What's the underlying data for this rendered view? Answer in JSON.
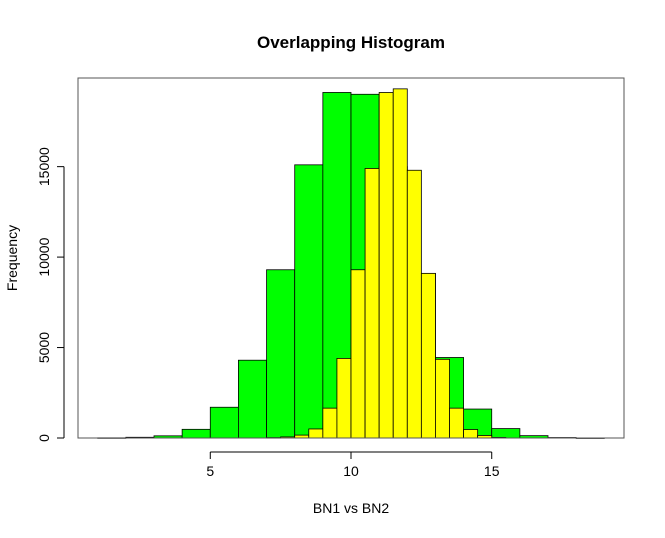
{
  "chart_data": {
    "type": "bar",
    "title": "Overlapping Histogram",
    "xlabel": "BN1 vs BN2",
    "ylabel": "Frequency",
    "xlim": [
      0.3,
      19.7
    ],
    "ylim": [
      0,
      19900
    ],
    "xticks": [
      5,
      10,
      15
    ],
    "yticks": [
      0,
      5000,
      10000,
      15000
    ],
    "grid": false,
    "legend": "none",
    "series": [
      {
        "color": "#00ff00",
        "bins": [
          {
            "x0": 1,
            "x1": 2,
            "count": 10
          },
          {
            "x0": 2,
            "x1": 3,
            "count": 40
          },
          {
            "x0": 3,
            "x1": 4,
            "count": 120
          },
          {
            "x0": 4,
            "x1": 5,
            "count": 480
          },
          {
            "x0": 5,
            "x1": 6,
            "count": 1700
          },
          {
            "x0": 6,
            "x1": 7,
            "count": 4300
          },
          {
            "x0": 7,
            "x1": 8,
            "count": 9300
          },
          {
            "x0": 8,
            "x1": 9,
            "count": 15100
          },
          {
            "x0": 9,
            "x1": 10,
            "count": 19100
          },
          {
            "x0": 10,
            "x1": 11,
            "count": 19000
          },
          {
            "x0": 11,
            "x1": 12,
            "count": 15000
          },
          {
            "x0": 12,
            "x1": 13,
            "count": 9100
          },
          {
            "x0": 13,
            "x1": 14,
            "count": 4450
          },
          {
            "x0": 14,
            "x1": 15,
            "count": 1600
          },
          {
            "x0": 15,
            "x1": 16,
            "count": 520
          },
          {
            "x0": 16,
            "x1": 17,
            "count": 130
          },
          {
            "x0": 17,
            "x1": 18,
            "count": 25
          },
          {
            "x0": 18,
            "x1": 19,
            "count": 5
          }
        ]
      },
      {
        "color": "#ffff00",
        "bins": [
          {
            "x0": 7,
            "x1": 7.5,
            "count": 20
          },
          {
            "x0": 7.5,
            "x1": 8,
            "count": 60
          },
          {
            "x0": 8,
            "x1": 8.5,
            "count": 160
          },
          {
            "x0": 8.5,
            "x1": 9,
            "count": 500
          },
          {
            "x0": 9,
            "x1": 9.5,
            "count": 1650
          },
          {
            "x0": 9.5,
            "x1": 10,
            "count": 4400
          },
          {
            "x0": 10,
            "x1": 10.5,
            "count": 9300
          },
          {
            "x0": 10.5,
            "x1": 11,
            "count": 14900
          },
          {
            "x0": 11,
            "x1": 11.5,
            "count": 19100
          },
          {
            "x0": 11.5,
            "x1": 12,
            "count": 19300
          },
          {
            "x0": 12,
            "x1": 12.5,
            "count": 14800
          },
          {
            "x0": 12.5,
            "x1": 13,
            "count": 9100
          },
          {
            "x0": 13,
            "x1": 13.5,
            "count": 4350
          },
          {
            "x0": 13.5,
            "x1": 14,
            "count": 1650
          },
          {
            "x0": 14,
            "x1": 14.5,
            "count": 470
          },
          {
            "x0": 14.5,
            "x1": 15,
            "count": 140
          },
          {
            "x0": 15,
            "x1": 15.5,
            "count": 30
          }
        ]
      }
    ]
  }
}
